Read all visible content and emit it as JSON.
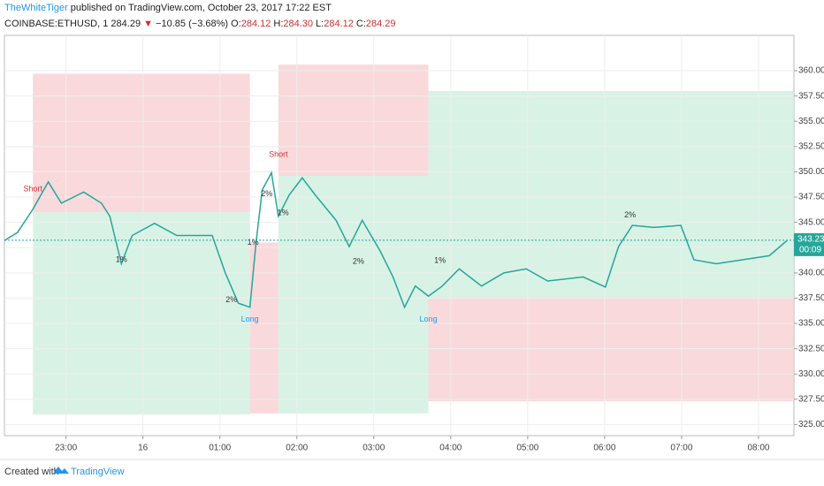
{
  "header": {
    "author": "TheWhiteTiger",
    "published": "published on TradingView.com, October 23, 2017 17:22 EST",
    "symbol": "COINBASE:ETHUSD, 1",
    "price": "284.29",
    "arrow": "▼",
    "change": "−10.85 (−3.68%)",
    "ohlc": [
      {
        "key": "O:",
        "value": "284.12"
      },
      {
        "key": "H:",
        "value": "284.30"
      },
      {
        "key": "L:",
        "value": "284.12"
      },
      {
        "key": "C:",
        "value": "284.29"
      }
    ]
  },
  "chart_data": {
    "type": "line",
    "x": [
      22.2,
      22.37,
      22.57,
      22.77,
      22.94,
      23.23,
      23.46,
      23.57,
      23.72,
      23.86,
      24.15,
      24.44,
      24.9,
      25.07,
      25.24,
      25.39,
      25.47,
      25.55,
      25.67,
      25.76,
      25.9,
      26.07,
      26.24,
      26.51,
      26.68,
      26.85,
      27.08,
      27.25,
      27.4,
      27.54,
      27.71,
      27.89,
      28.11,
      28.4,
      28.69,
      28.98,
      29.26,
      29.72,
      30.01,
      30.18,
      30.36,
      30.64,
      30.99,
      31.16,
      31.45,
      31.79,
      32.14,
      32.37
    ],
    "series": [
      {
        "color": "#26a69a",
        "values": [
          343.2,
          344.0,
          346.3,
          349.0,
          346.9,
          348.0,
          346.9,
          345.6,
          340.9,
          343.7,
          344.9,
          343.7,
          343.7,
          340.0,
          337.0,
          336.6,
          343.0,
          348.2,
          349.9,
          345.6,
          347.7,
          349.4,
          347.7,
          345.2,
          342.6,
          345.2,
          342.2,
          339.6,
          336.6,
          338.7,
          337.7,
          338.7,
          340.4,
          338.7,
          340.0,
          340.4,
          339.2,
          339.6,
          338.6,
          342.6,
          344.7,
          344.5,
          344.7,
          341.3,
          340.9,
          341.3,
          341.7,
          343.2
        ]
      }
    ],
    "bands": [
      {
        "xlim": [
          22.57,
          25.39
        ],
        "ylim": [
          346.0,
          359.7
        ],
        "color": "#f7c9cc"
      },
      {
        "xlim": [
          22.57,
          25.39
        ],
        "ylim": [
          326.0,
          346.0
        ],
        "color": "#c9ecdc"
      },
      {
        "xlim": [
          25.39,
          25.76
        ],
        "ylim": [
          326.1,
          343.0
        ],
        "color": "#f7c9cc"
      },
      {
        "xlim": [
          25.76,
          27.71
        ],
        "ylim": [
          349.6,
          360.6
        ],
        "color": "#f7c9cc"
      },
      {
        "xlim": [
          25.76,
          27.71
        ],
        "ylim": [
          326.1,
          349.6
        ],
        "color": "#c9ecdc"
      },
      {
        "xlim": [
          27.71,
          32.46
        ],
        "ylim": [
          337.6,
          358.0
        ],
        "color": "#c9ecdc"
      },
      {
        "xlim": [
          27.71,
          32.46
        ],
        "ylim": [
          327.3,
          337.6
        ],
        "color": "#f7c9cc"
      }
    ],
    "annotations": [
      {
        "text": "Short",
        "x": 22.57,
        "y": 348.3,
        "color": "#d32f2f"
      },
      {
        "text": "Short",
        "x": 25.76,
        "y": 351.7,
        "color": "#d32f2f"
      },
      {
        "text": "Long",
        "x": 25.39,
        "y": 335.4,
        "color": "#2196f3"
      },
      {
        "text": "Long",
        "x": 27.71,
        "y": 335.4,
        "color": "#2196f3"
      },
      {
        "text": "1%",
        "x": 23.72,
        "y": 341.3,
        "color": "#333333"
      },
      {
        "text": "2%",
        "x": 25.15,
        "y": 337.3,
        "color": "#333333"
      },
      {
        "text": "1%",
        "x": 25.43,
        "y": 343.0,
        "color": "#333333"
      },
      {
        "text": "2%",
        "x": 25.61,
        "y": 347.8,
        "color": "#333333"
      },
      {
        "text": "1%",
        "x": 25.82,
        "y": 345.9,
        "color": "#333333"
      },
      {
        "text": "2%",
        "x": 26.8,
        "y": 341.1,
        "color": "#333333"
      },
      {
        "text": "1%",
        "x": 27.86,
        "y": 341.2,
        "color": "#333333"
      },
      {
        "text": "2%",
        "x": 30.33,
        "y": 345.7,
        "color": "#333333"
      }
    ],
    "xlim": [
      22.2,
      32.46
    ],
    "ylim": [
      323.9,
      363.5
    ],
    "xticks": [
      {
        "value": 23,
        "label": "23:00"
      },
      {
        "value": 24,
        "label": "16"
      },
      {
        "value": 25,
        "label": "01:00"
      },
      {
        "value": 26,
        "label": "02:00"
      },
      {
        "value": 27,
        "label": "03:00"
      },
      {
        "value": 28,
        "label": "04:00"
      },
      {
        "value": 29,
        "label": "05:00"
      },
      {
        "value": 30,
        "label": "06:00"
      },
      {
        "value": 31,
        "label": "07:00"
      },
      {
        "value": 32,
        "label": "08:00"
      }
    ],
    "yticks": [
      {
        "value": 325,
        "label": "325.00"
      },
      {
        "value": 327.5,
        "label": "327.50"
      },
      {
        "value": 330,
        "label": "330.00"
      },
      {
        "value": 332.5,
        "label": "332.50"
      },
      {
        "value": 335,
        "label": "335.00"
      },
      {
        "value": 337.5,
        "label": "337.50"
      },
      {
        "value": 340,
        "label": "340.00"
      },
      {
        "value": 342.5,
        "label": "342.50"
      },
      {
        "value": 345,
        "label": "345.00"
      },
      {
        "value": 347.5,
        "label": "347.50"
      },
      {
        "value": 350,
        "label": "350.00"
      },
      {
        "value": 352.5,
        "label": "352.50"
      },
      {
        "value": 355,
        "label": "355.00"
      },
      {
        "value": 357.5,
        "label": "357.50"
      },
      {
        "value": 360,
        "label": "360.00"
      }
    ],
    "last_price": {
      "value": 343.23,
      "label": "343.23"
    },
    "countdown": "00:09",
    "grid": true
  },
  "footer": {
    "created": "Created with",
    "brand": "TradingView"
  }
}
